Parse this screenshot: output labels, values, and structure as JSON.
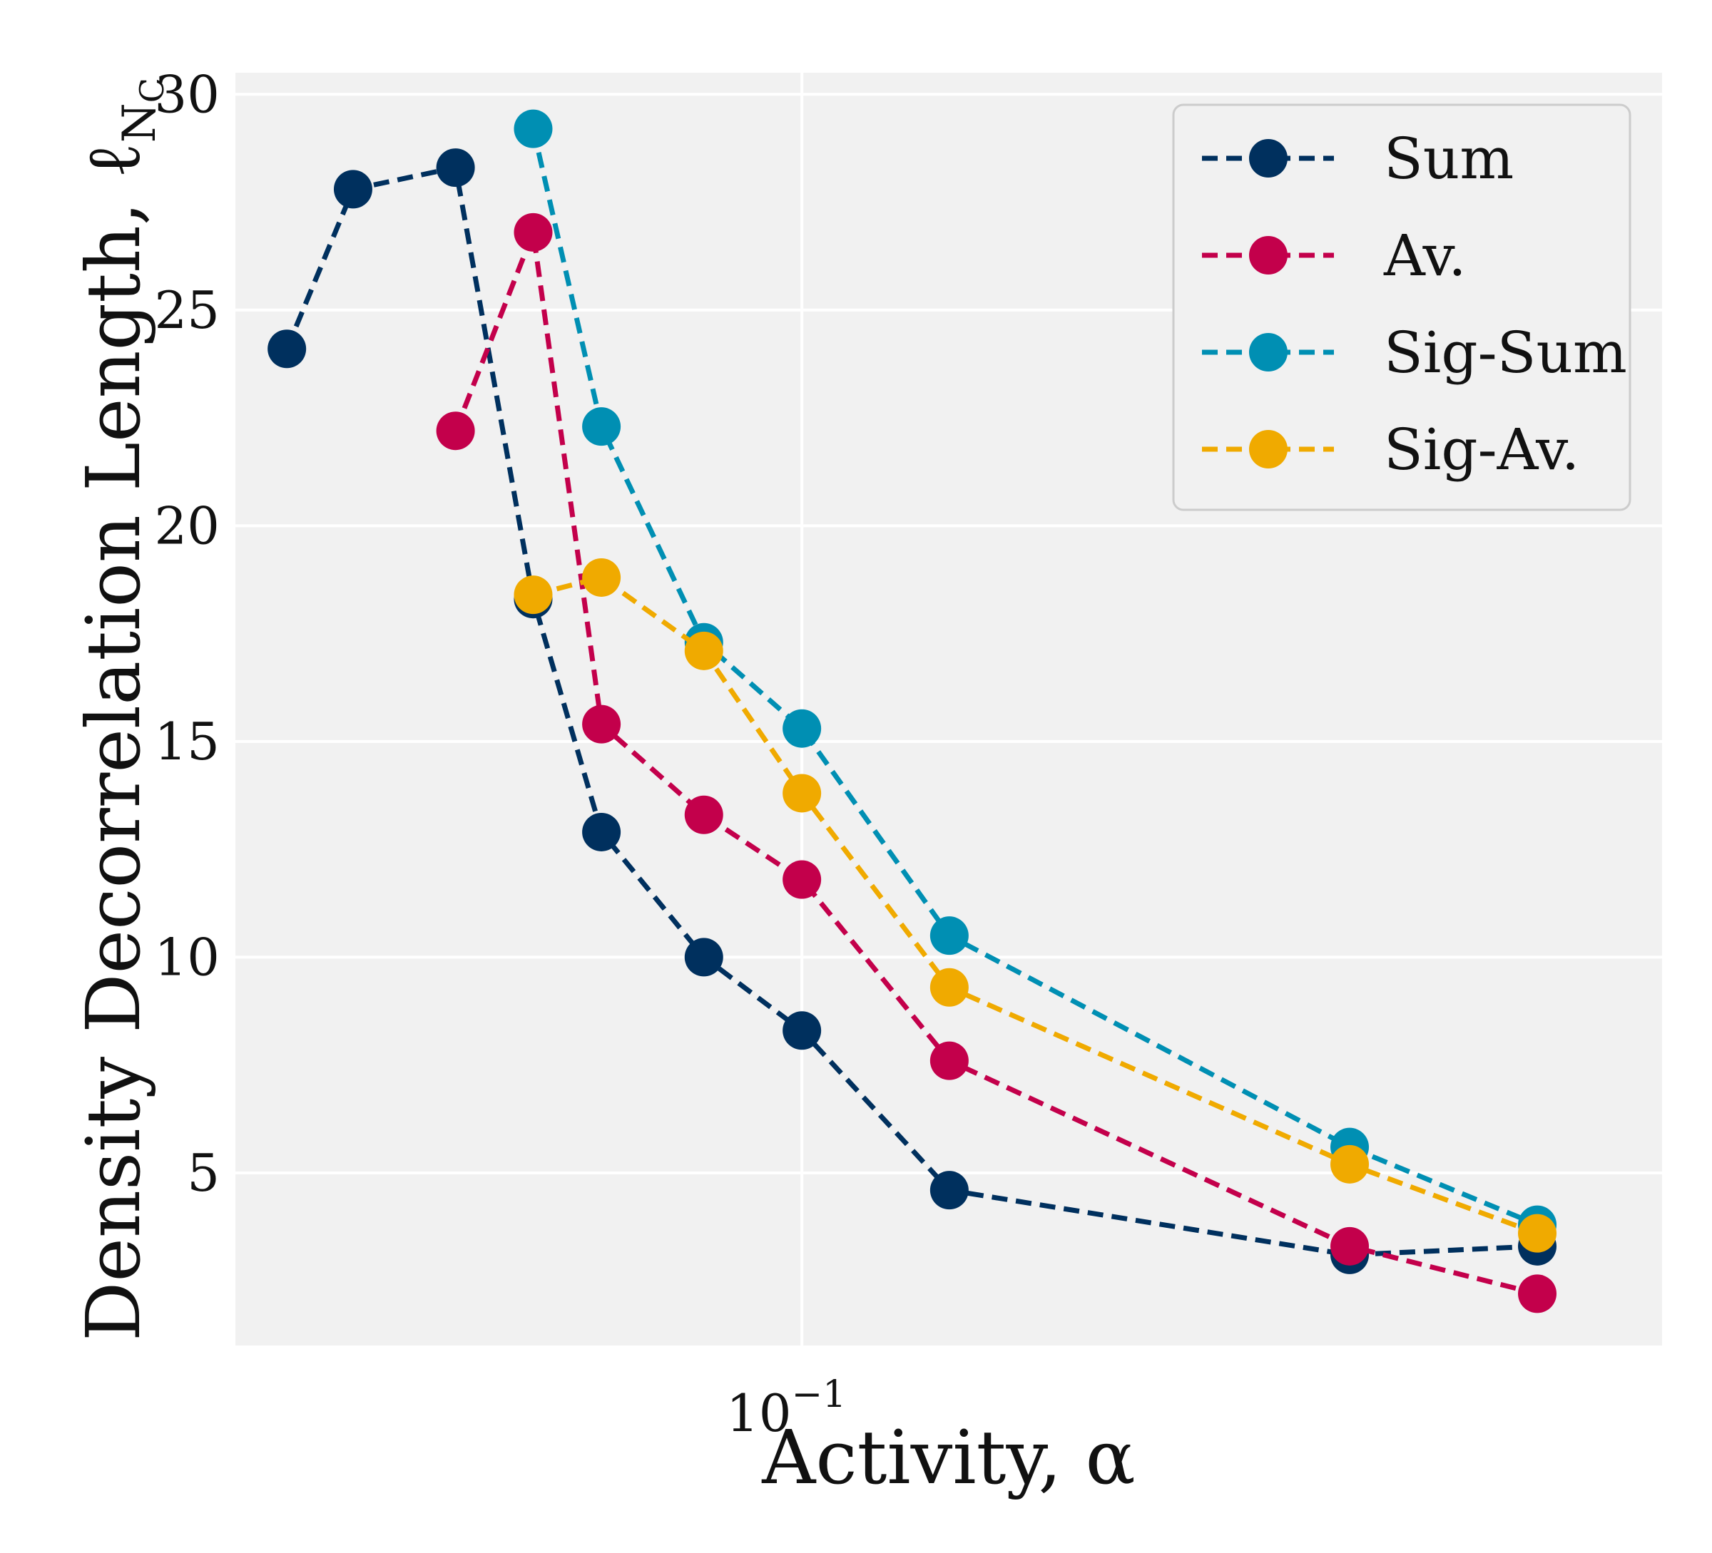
{
  "chart_data": {
    "type": "line",
    "title": "",
    "xlabel": "Activity, α",
    "ylabel": "Density Decorrelation Length, ℓ",
    "ylabel_subscript": "N",
    "ylabel_subscript2": "C",
    "x_scale": "log",
    "xlim": [
      0.0365,
      0.462
    ],
    "ylim": [
      1.0,
      30.5
    ],
    "x_ticks": [
      {
        "value": 0.1,
        "label": "10",
        "exponent": "−1"
      }
    ],
    "y_ticks": [
      {
        "value": 5,
        "label": "5"
      },
      {
        "value": 10,
        "label": "10"
      },
      {
        "value": 15,
        "label": "15"
      },
      {
        "value": 20,
        "label": "20"
      },
      {
        "value": 25,
        "label": "25"
      },
      {
        "value": 30,
        "label": "30"
      }
    ],
    "grid": true,
    "legend_position": "top-right",
    "series": [
      {
        "name": "Sum",
        "color": "#00305e",
        "points": [
          [
            0.04,
            24.1
          ],
          [
            0.045,
            27.8
          ],
          [
            0.054,
            28.3
          ],
          [
            0.062,
            18.3
          ],
          [
            0.07,
            12.9
          ],
          [
            0.084,
            10.0
          ],
          [
            0.1,
            8.3
          ],
          [
            0.13,
            4.6
          ],
          [
            0.265,
            3.1
          ],
          [
            0.37,
            3.3
          ]
        ]
      },
      {
        "name": "Av.",
        "color": "#c3004b",
        "points": [
          [
            0.054,
            22.2
          ],
          [
            0.062,
            26.8
          ],
          [
            0.07,
            15.4
          ],
          [
            0.084,
            13.3
          ],
          [
            0.1,
            11.8
          ],
          [
            0.13,
            7.6
          ],
          [
            0.265,
            3.3
          ],
          [
            0.37,
            2.2
          ]
        ]
      },
      {
        "name": "Sig-Sum",
        "color": "#008fb3",
        "points": [
          [
            0.062,
            29.2
          ],
          [
            0.07,
            22.3
          ],
          [
            0.084,
            17.3
          ],
          [
            0.1,
            15.3
          ],
          [
            0.13,
            10.5
          ],
          [
            0.265,
            5.6
          ],
          [
            0.37,
            3.8
          ]
        ]
      },
      {
        "name": "Sig-Av.",
        "color": "#f0aa00",
        "points": [
          [
            0.062,
            18.4
          ],
          [
            0.07,
            18.8
          ],
          [
            0.084,
            17.1
          ],
          [
            0.1,
            13.8
          ],
          [
            0.13,
            9.3
          ],
          [
            0.265,
            5.2
          ],
          [
            0.37,
            3.6
          ]
        ]
      }
    ]
  }
}
